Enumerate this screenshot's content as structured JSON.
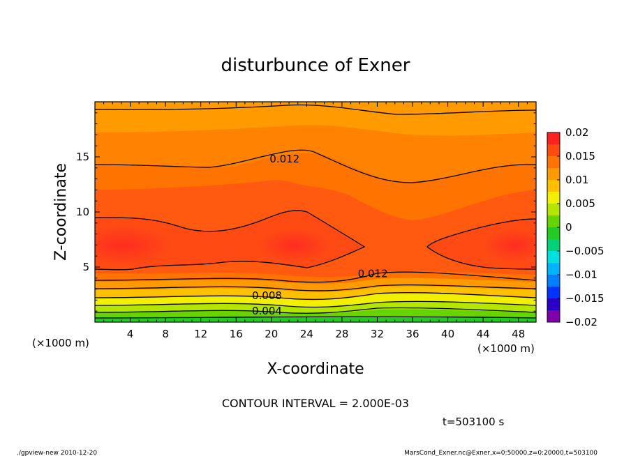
{
  "chart_data": {
    "type": "contour",
    "title": "disturbunce of Exner",
    "xlabel": "X-coordinate",
    "ylabel": "Z-coordinate",
    "x_unit_label_left": "(×1000 m)",
    "x_unit_label_right": "(×1000 m)",
    "xlim": [
      0,
      50
    ],
    "ylim": [
      0,
      20
    ],
    "x_ticks": [
      4,
      8,
      12,
      16,
      20,
      24,
      28,
      32,
      36,
      40,
      44,
      48
    ],
    "y_ticks": [
      5,
      10,
      15
    ],
    "colorbar": {
      "levels": [
        -0.02,
        -0.0175,
        -0.015,
        -0.0125,
        -0.01,
        -0.0075,
        -0.005,
        -0.0025,
        0,
        0.0025,
        0.005,
        0.0075,
        0.01,
        0.0125,
        0.015,
        0.0175,
        0.02
      ],
      "tick_values": [
        0.02,
        0.015,
        0.01,
        0.005,
        0,
        -0.005,
        -0.01,
        -0.015,
        -0.02
      ],
      "tick_labels": [
        "0.02",
        "0.015",
        "0.01",
        "0.005",
        "0",
        "−0.005",
        "−0.01",
        "−0.015",
        "−0.02"
      ],
      "colors": [
        "#7f00aa",
        "#2a00c8",
        "#0033ff",
        "#0080ff",
        "#00b4ff",
        "#00e0e0",
        "#00d27a",
        "#22cc22",
        "#66d400",
        "#b4e600",
        "#f0f000",
        "#ffc000",
        "#ff9a00",
        "#ff7400",
        "#ff4a10",
        "#ff2020",
        "#ff9a9a"
      ]
    },
    "contour_levels": [
      0.002,
      0.004,
      0.006,
      0.008,
      0.01,
      0.012,
      0.014
    ],
    "contour_line_labels": [
      {
        "text": "0.012",
        "x": 21.5,
        "z": 14.8
      },
      {
        "text": "0.012",
        "x": 31.5,
        "z": 4.4
      },
      {
        "text": "0.008",
        "x": 19.5,
        "z": 2.4
      },
      {
        "text": "0.004",
        "x": 19.5,
        "z": 1.0
      }
    ],
    "contour_interval": "CONTOUR INTERVAL = 2.000E-03",
    "time_label": "t=503100 s"
  },
  "footer": {
    "left": "./gpview-new   2010-12-20",
    "right": "MarsCond_Exner.nc@Exner,x=0:50000,z=0:20000,t=503100"
  }
}
